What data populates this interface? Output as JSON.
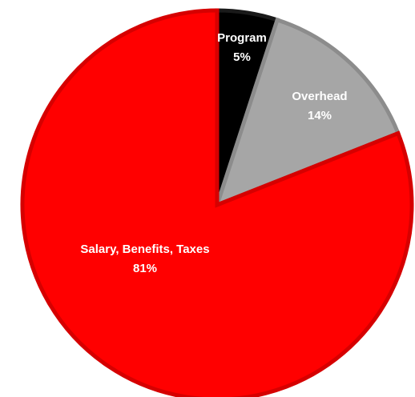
{
  "chart_data": {
    "type": "pie",
    "slices": [
      {
        "label": "Program",
        "value_label": "5%",
        "value": 5,
        "color": "#000000",
        "stroke": "#1a1a1a"
      },
      {
        "label": "Overhead",
        "value_label": "14%",
        "value": 14,
        "color": "#a6a6a6",
        "stroke": "#8c8c8c"
      },
      {
        "label": "Salary, Benefits, Taxes",
        "value_label": "81%",
        "value": 81,
        "color": "#ff0000",
        "stroke": "#d60000"
      }
    ],
    "start_angle_deg": 0,
    "direction": "clockwise",
    "legend": "none"
  }
}
